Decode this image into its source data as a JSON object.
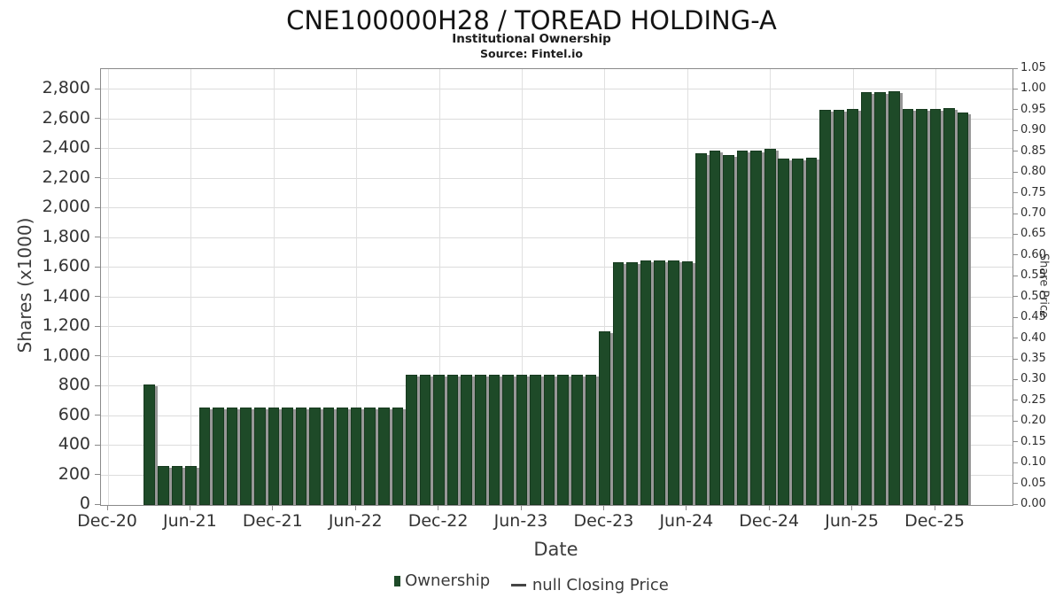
{
  "header": {
    "title": "CNE100000H28 / TOREAD HOLDING-A",
    "subtitle": "Institutional Ownership",
    "source": "Source: Fintel.io"
  },
  "legend": {
    "items": [
      {
        "label": "Ownership",
        "marker": "square",
        "color": "#1e4a28"
      },
      {
        "label": "null Closing Price",
        "marker": "line",
        "color": "#454545"
      }
    ]
  },
  "chart_data": {
    "type": "bar",
    "title": "CNE100000H28 / TOREAD HOLDING-A",
    "subtitle": "Institutional Ownership",
    "source": "Source: Fintel.io",
    "xlabel": "Date",
    "ylabel_left": "Shares (x1000)",
    "ylabel_right": "Share Price",
    "bar_color": "#1e4a28",
    "shadow_color": "#919191",
    "grid": true,
    "legend_position": "bottom",
    "x_tick_labels": [
      "Dec-20",
      "Jun-21",
      "Dec-21",
      "Jun-22",
      "Dec-22",
      "Jun-23",
      "Dec-23",
      "Jun-24",
      "Dec-24",
      "Jun-25",
      "Dec-25"
    ],
    "x_tick_month_step": 6,
    "y_left_axis": {
      "label": "Shares (x1000)",
      "min": 0,
      "max": 2940,
      "tick_step": 200,
      "highest_tick_label": "2,800"
    },
    "y_right_axis": {
      "label": "Share Price",
      "min": 0.0,
      "max": 1.05,
      "tick_step": 0.05
    },
    "series": [
      {
        "name": "Ownership",
        "type": "bar",
        "first_month_offset_from_dec20": 3,
        "months": [
          "Mar-21",
          "Apr-21",
          "May-21",
          "Jun-21",
          "Jul-21",
          "Aug-21",
          "Sep-21",
          "Oct-21",
          "Nov-21",
          "Dec-21",
          "Jan-22",
          "Feb-22",
          "Mar-22",
          "Apr-22",
          "May-22",
          "Jun-22",
          "Jul-22",
          "Aug-22",
          "Sep-22",
          "Oct-22",
          "Nov-22",
          "Dec-22",
          "Jan-23",
          "Feb-23",
          "Mar-23",
          "Apr-23",
          "May-23",
          "Jun-23",
          "Jul-23",
          "Aug-23",
          "Sep-23",
          "Oct-23",
          "Nov-23",
          "Dec-23",
          "Jan-24",
          "Feb-24",
          "Mar-24",
          "Apr-24",
          "May-24",
          "Jun-24",
          "Jul-24",
          "Aug-24",
          "Sep-24",
          "Oct-24",
          "Nov-24",
          "Dec-24",
          "Jan-25",
          "Feb-25",
          "Mar-25",
          "Apr-25",
          "May-25",
          "Jun-25",
          "Jul-25",
          "Aug-25",
          "Sep-25",
          "Oct-25",
          "Nov-25",
          "Dec-25",
          "Jan-26",
          "Feb-26"
        ],
        "values": [
          810,
          262,
          262,
          262,
          655,
          655,
          655,
          655,
          655,
          655,
          655,
          655,
          655,
          655,
          655,
          655,
          655,
          655,
          655,
          880,
          880,
          880,
          880,
          880,
          880,
          880,
          880,
          880,
          880,
          880,
          880,
          880,
          880,
          1170,
          1640,
          1640,
          1650,
          1650,
          1650,
          1645,
          2375,
          2390,
          2360,
          2390,
          2390,
          2400,
          2335,
          2335,
          2345,
          2665,
          2665,
          2670,
          2785,
          2785,
          2790,
          2670,
          2670,
          2670,
          2675,
          2650
        ]
      },
      {
        "name": "null Closing Price",
        "type": "line",
        "values": null
      }
    ]
  }
}
